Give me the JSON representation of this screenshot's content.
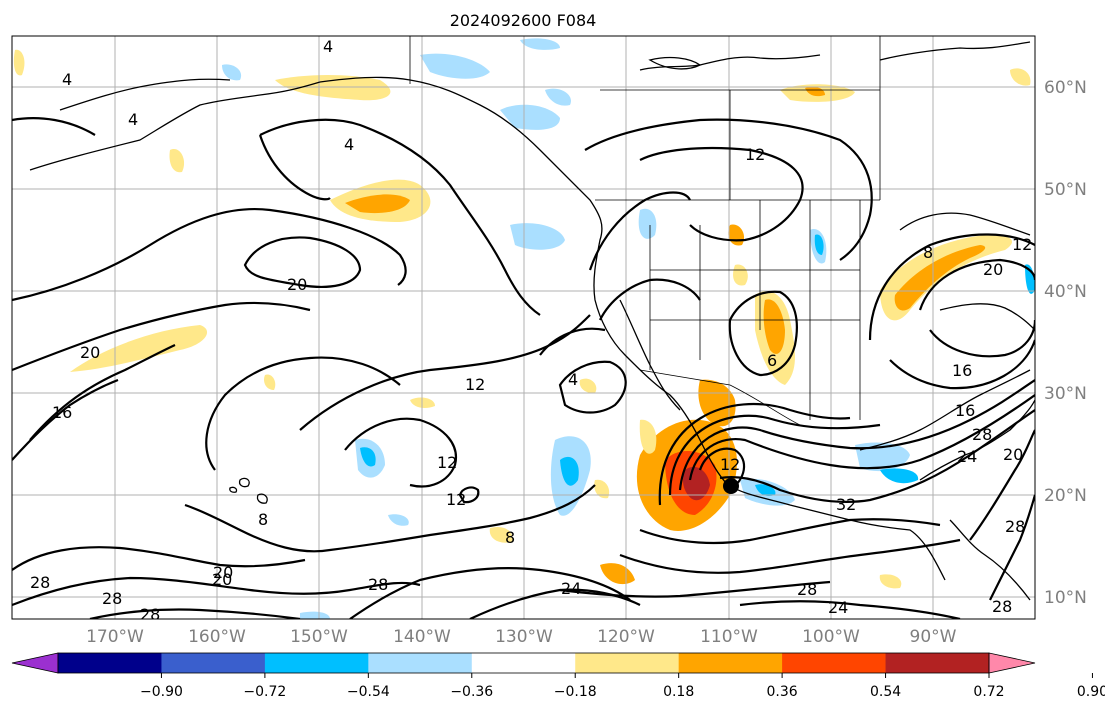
{
  "title": "2024092600 F084",
  "lat_labels": [
    "60°N",
    "50°N",
    "40°N",
    "30°N",
    "20°N",
    "10°N"
  ],
  "lon_labels": [
    "170°W",
    "160°W",
    "150°W",
    "140°W",
    "130°W",
    "120°W",
    "110°W",
    "100°W",
    "90°W"
  ],
  "colorbar": {
    "ticks": [
      "−0.90",
      "−0.72",
      "−0.54",
      "−0.36",
      "−0.18",
      "0.18",
      "0.36",
      "0.54",
      "0.72",
      "0.90"
    ],
    "colors": [
      "#9b30d0",
      "#00008b",
      "#3a5fcd",
      "#00bfff",
      "#aadfff",
      "#ffffff",
      "#ffe88a",
      "#ffa500",
      "#ff4500",
      "#b22222",
      "#ff88aa"
    ]
  },
  "contour_labels": [
    "4",
    "4",
    "4",
    "4",
    "12",
    "20",
    "20",
    "20",
    "12",
    "16",
    "12",
    "8",
    "8",
    "12",
    "6",
    "4",
    "8",
    "12",
    "16",
    "20",
    "12",
    "16",
    "28",
    "24",
    "20",
    "32",
    "28",
    "24",
    "28",
    "24",
    "28",
    "28",
    "20",
    "28",
    "28",
    "28"
  ],
  "marker": "storm-center"
}
